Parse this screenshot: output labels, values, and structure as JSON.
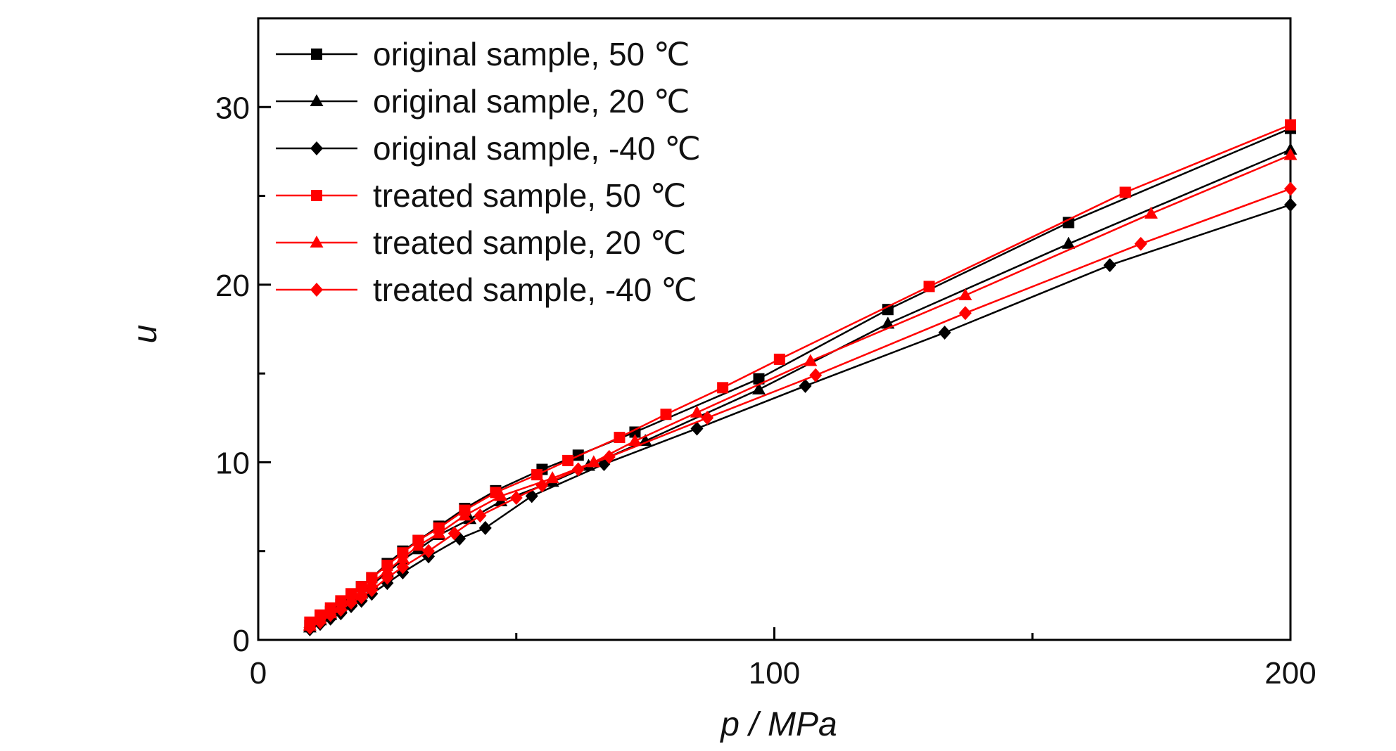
{
  "chart_data": {
    "type": "line",
    "xlabel": "p / MPa",
    "ylabel": "u",
    "xlim": [
      0,
      200
    ],
    "ylim": [
      0,
      35
    ],
    "x_ticks": [
      0,
      100,
      200
    ],
    "x_minor_ticks": [
      50,
      150
    ],
    "y_ticks": [
      0,
      10,
      20,
      30
    ],
    "y_minor_ticks": [
      5,
      15,
      25
    ],
    "grid": false,
    "legend_placement": "top-left",
    "series": [
      {
        "name": "original sample, 50 ℃",
        "color": "#000000",
        "marker": "square",
        "x": [
          10,
          12,
          14,
          16,
          18,
          20,
          22,
          25,
          28,
          31,
          35,
          40,
          46,
          55,
          62,
          73,
          97,
          122,
          157,
          200
        ],
        "y": [
          0.8,
          1.2,
          1.6,
          2.0,
          2.5,
          3.0,
          3.5,
          4.3,
          5.0,
          5.6,
          6.4,
          7.4,
          8.4,
          9.6,
          10.4,
          11.7,
          14.7,
          18.6,
          23.5,
          28.8
        ]
      },
      {
        "name": "original sample, 20 ℃",
        "color": "#000000",
        "marker": "triangle",
        "x": [
          10,
          12,
          14,
          16,
          18,
          20,
          22,
          25,
          28,
          31,
          35,
          41,
          47,
          57,
          64,
          75,
          97,
          122,
          157,
          200
        ],
        "y": [
          0.7,
          1.1,
          1.4,
          1.8,
          2.2,
          2.6,
          3.1,
          3.8,
          4.5,
          5.1,
          5.9,
          6.8,
          7.8,
          8.9,
          9.8,
          11.2,
          14.1,
          17.8,
          22.3,
          27.6
        ]
      },
      {
        "name": "original sample, -40 ℃",
        "color": "#000000",
        "marker": "diamond",
        "x": [
          10,
          12,
          14,
          16,
          18,
          20,
          22,
          25,
          28,
          33,
          39,
          44,
          53,
          67,
          85,
          106,
          133,
          165,
          200
        ],
        "y": [
          0.6,
          0.9,
          1.2,
          1.5,
          1.9,
          2.2,
          2.6,
          3.2,
          3.8,
          4.7,
          5.7,
          6.3,
          8.1,
          9.9,
          11.9,
          14.3,
          17.3,
          21.1,
          24.5
        ]
      },
      {
        "name": "treated sample, 50 ℃",
        "color": "#ff0000",
        "marker": "square",
        "x": [
          10,
          12,
          14,
          16,
          18,
          20,
          22,
          25,
          28,
          31,
          35,
          40,
          46,
          54,
          60,
          70,
          79,
          90,
          101,
          130,
          168,
          200
        ],
        "y": [
          1.0,
          1.4,
          1.8,
          2.2,
          2.6,
          3.0,
          3.5,
          4.2,
          4.9,
          5.6,
          6.3,
          7.3,
          8.3,
          9.3,
          10.1,
          11.4,
          12.7,
          14.2,
          15.8,
          19.9,
          25.2,
          29.0
        ]
      },
      {
        "name": "treated sample, 20 ℃",
        "color": "#ff0000",
        "marker": "triangle",
        "x": [
          10,
          12,
          14,
          16,
          18,
          20,
          22,
          25,
          28,
          31,
          35,
          40,
          47,
          57,
          65,
          73,
          85,
          107,
          137,
          173,
          200
        ],
        "y": [
          0.8,
          1.2,
          1.5,
          1.9,
          2.3,
          2.7,
          3.2,
          3.9,
          4.6,
          5.3,
          6.0,
          7.0,
          8.1,
          9.1,
          10.0,
          11.2,
          12.8,
          15.7,
          19.4,
          24.0,
          27.3
        ]
      },
      {
        "name": "treated sample, -40 ℃",
        "color": "#ff0000",
        "marker": "diamond",
        "x": [
          10,
          12,
          14,
          16,
          18,
          20,
          22,
          25,
          28,
          33,
          38,
          43,
          50,
          55,
          62,
          68,
          87,
          108,
          137,
          171,
          200
        ],
        "y": [
          0.7,
          1.0,
          1.4,
          1.7,
          2.1,
          2.4,
          2.8,
          3.5,
          4.1,
          5.0,
          6.0,
          7.0,
          8.0,
          8.7,
          9.6,
          10.3,
          12.5,
          14.9,
          18.4,
          22.3,
          25.4
        ]
      }
    ]
  }
}
